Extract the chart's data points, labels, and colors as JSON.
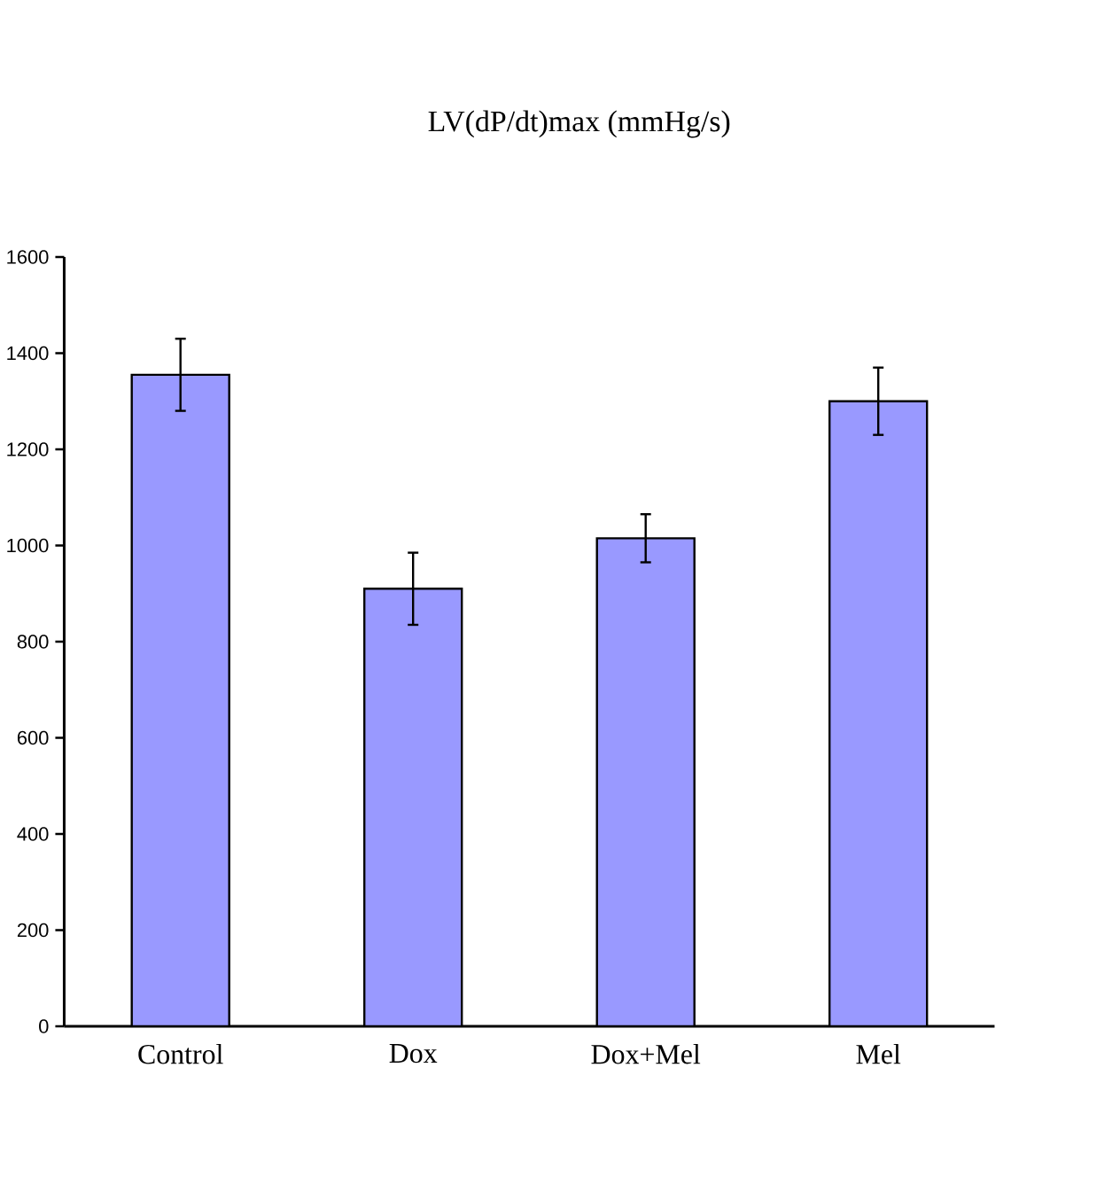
{
  "chart_data": {
    "type": "bar",
    "title": "LV(dP/dt)max (mmHg/s)",
    "categories": [
      "Control",
      "Dox",
      "Dox+Mel",
      "Mel"
    ],
    "values": [
      1355,
      910,
      1015,
      1300
    ],
    "errors": [
      75,
      75,
      50,
      70
    ],
    "color": "#9999ff",
    "ylim": [
      0,
      1600
    ],
    "yticks": [
      0,
      200,
      400,
      600,
      800,
      1000,
      1200,
      1400,
      1600
    ]
  }
}
